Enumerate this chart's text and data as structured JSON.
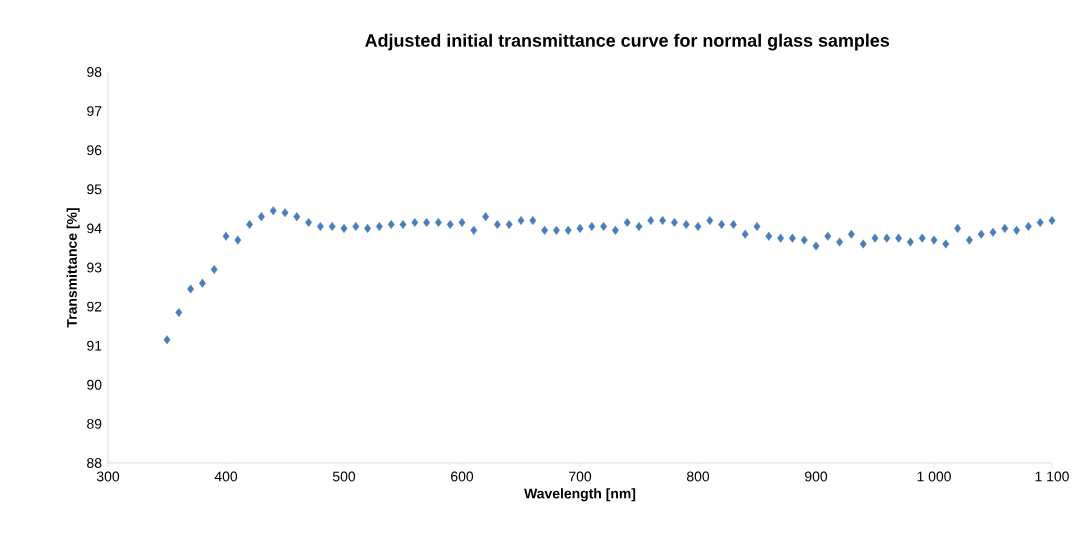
{
  "chart_data": {
    "type": "scatter",
    "title": "Adjusted initial transmittance curve for normal glass samples",
    "xlabel": "Wavelength [nm]",
    "ylabel": "Transmittance [%]",
    "x": [
      350,
      360,
      370,
      380,
      390,
      400,
      410,
      420,
      430,
      440,
      450,
      460,
      470,
      480,
      490,
      500,
      510,
      520,
      530,
      540,
      550,
      560,
      570,
      580,
      590,
      600,
      610,
      620,
      630,
      640,
      650,
      660,
      670,
      680,
      690,
      700,
      710,
      720,
      730,
      740,
      750,
      760,
      770,
      780,
      790,
      800,
      810,
      820,
      830,
      840,
      850,
      860,
      870,
      880,
      890,
      900,
      910,
      920,
      930,
      940,
      950,
      960,
      970,
      980,
      990,
      1000,
      1010,
      1020,
      1030,
      1040,
      1050,
      1060,
      1070,
      1080,
      1090,
      1100
    ],
    "values": [
      91.15,
      91.85,
      92.45,
      92.6,
      92.95,
      93.8,
      93.7,
      94.1,
      94.3,
      94.45,
      94.4,
      94.3,
      94.15,
      94.05,
      94.05,
      94.0,
      94.05,
      94.0,
      94.05,
      94.1,
      94.1,
      94.15,
      94.15,
      94.15,
      94.1,
      94.15,
      93.95,
      94.3,
      94.1,
      94.1,
      94.2,
      94.2,
      93.95,
      93.95,
      93.95,
      94.0,
      94.05,
      94.05,
      93.95,
      94.15,
      94.05,
      94.2,
      94.2,
      94.15,
      94.1,
      94.05,
      94.2,
      94.1,
      94.1,
      93.85,
      94.05,
      93.8,
      93.75,
      93.75,
      93.7,
      93.55,
      93.8,
      93.65,
      93.85,
      93.6,
      93.75,
      93.75,
      93.75,
      93.65,
      93.75,
      93.7,
      93.6,
      94.0,
      93.7,
      93.85,
      93.9,
      94.0,
      93.95,
      94.05,
      94.15,
      94.2
    ],
    "color": "#4a7ebb",
    "marker": "diamond",
    "xlim": [
      300,
      1100
    ],
    "ylim": [
      88,
      98
    ],
    "xticks": [
      300,
      400,
      500,
      600,
      700,
      800,
      900,
      {
        "value": 1000,
        "label": "1 000"
      },
      {
        "value": 1100,
        "label": "1 100"
      }
    ],
    "yticks": [
      88,
      89,
      90,
      91,
      92,
      93,
      94,
      95,
      96,
      97,
      98
    ]
  }
}
